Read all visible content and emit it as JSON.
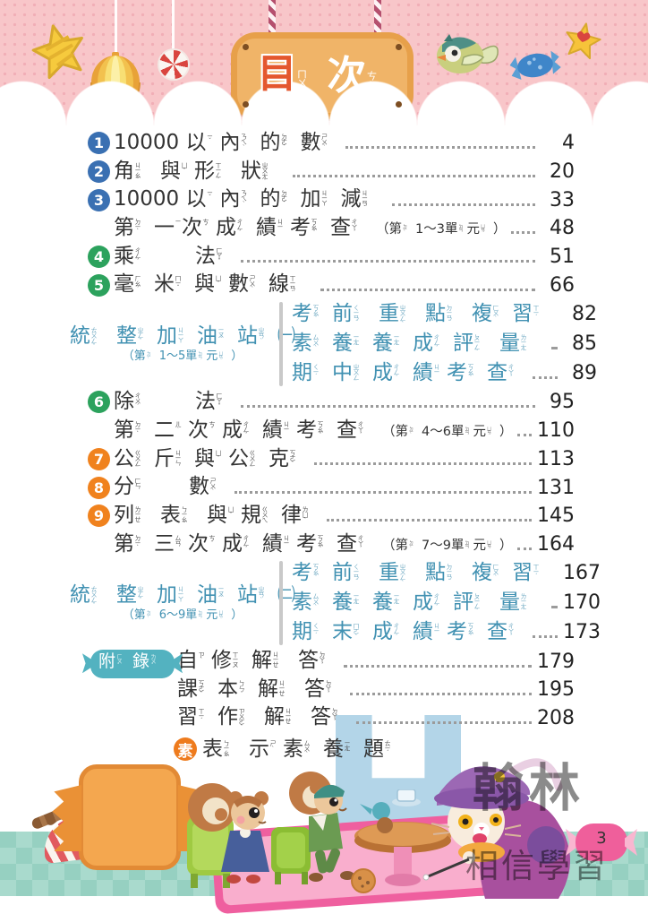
{
  "header": {
    "title_segs": [
      [
        "目",
        "ㄇㄨˋ"
      ],
      [
        "次",
        "ㄘˋ"
      ]
    ],
    "decorations": [
      "star-cookie",
      "paper-lantern",
      "peppermint-candy",
      "bird",
      "blue-candy",
      "heart-star"
    ]
  },
  "toc": {
    "rows": [
      {
        "type": "chapter",
        "num": "1",
        "color": "#3a70b2",
        "segs": [
          [
            "10000 "
          ],
          [
            "以",
            "ㄧˇ"
          ],
          [
            "內",
            "ㄋㄟˋ"
          ],
          [
            "的",
            "ㄉㄜ˙"
          ],
          [
            "數",
            "ㄕㄨˋ"
          ]
        ],
        "page": "4"
      },
      {
        "type": "chapter",
        "num": "2",
        "color": "#3a70b2",
        "segs": [
          [
            "角",
            "ㄐㄧㄠˇ"
          ],
          [
            "與",
            "ㄩˇ"
          ],
          [
            "形",
            "ㄒㄧㄥˊ"
          ],
          [
            "狀",
            "ㄓㄨㄤˋ"
          ]
        ],
        "page": "20"
      },
      {
        "type": "chapter",
        "num": "3",
        "color": "#3a70b2",
        "segs": [
          [
            "10000 "
          ],
          [
            "以",
            "ㄧˇ"
          ],
          [
            "內",
            "ㄋㄟˋ"
          ],
          [
            "的",
            "ㄉㄜ˙"
          ],
          [
            "加",
            "ㄐㄧㄚ"
          ],
          [
            "減",
            "ㄐㄧㄢˇ"
          ]
        ],
        "page": "33"
      },
      {
        "type": "exam",
        "segs": [
          [
            "第",
            "ㄉㄧˋ"
          ],
          [
            "一",
            "ㄧ"
          ],
          [
            "次",
            "ㄘˋ"
          ],
          [
            "成",
            "ㄔㄥˊ"
          ],
          [
            "績",
            "ㄐㄧ"
          ],
          [
            "考",
            "ㄎㄠˇ"
          ],
          [
            "查",
            "ㄔㄚˊ"
          ]
        ],
        "note_segs": [
          [
            "（"
          ],
          [
            "第",
            "ㄉㄧˋ"
          ],
          [
            "1～3"
          ],
          [
            "單",
            "ㄉㄢ"
          ],
          [
            "元",
            "ㄩㄢˊ"
          ],
          [
            "）"
          ]
        ],
        "page": "48"
      },
      {
        "type": "chapter",
        "num": "4",
        "color": "#2ca25d",
        "segs": [
          [
            "乘",
            "ㄔㄥˊ"
          ],
          [
            "　　"
          ],
          [
            "法",
            "ㄈㄚˇ"
          ]
        ],
        "page": "51"
      },
      {
        "type": "chapter",
        "num": "5",
        "color": "#2ca25d",
        "segs": [
          [
            "毫",
            "ㄏㄠˊ"
          ],
          [
            "米",
            "ㄇㄧˇ"
          ],
          [
            "與",
            "ㄩˇ"
          ],
          [
            "數",
            "ㄕㄨˋ"
          ],
          [
            "線",
            "ㄒㄧㄢˋ"
          ]
        ],
        "page": "66"
      },
      {
        "type": "station",
        "label_segs": [
          [
            "統",
            "ㄊㄨㄥˇ"
          ],
          [
            "整",
            "ㄓㄥˇ"
          ],
          [
            "加",
            "ㄐㄧㄚ"
          ],
          [
            "油",
            "ㄧㄡˊ"
          ],
          [
            "站",
            "ㄓㄢˋ"
          ],
          [
            "㈠"
          ]
        ],
        "note_segs": [
          [
            "（"
          ],
          [
            "第",
            "ㄉㄧˋ"
          ],
          [
            "1～5"
          ],
          [
            "單",
            "ㄉㄢ"
          ],
          [
            "元",
            "ㄩㄢˊ"
          ],
          [
            "）"
          ]
        ],
        "items": [
          {
            "segs": [
              [
                "考",
                "ㄎㄠˇ"
              ],
              [
                "前",
                "ㄑㄧㄢˊ"
              ],
              [
                "重",
                "ㄓㄨㄥˋ"
              ],
              [
                "點",
                "ㄉㄧㄢˇ"
              ],
              [
                "複",
                "ㄈㄨˋ"
              ],
              [
                "習",
                "ㄒㄧˊ"
              ]
            ],
            "page": "82"
          },
          {
            "segs": [
              [
                "素",
                "ㄙㄨˋ"
              ],
              [
                "養",
                "ㄧㄤˇ"
              ],
              [
                "養",
                "ㄧㄤˇ"
              ],
              [
                "成",
                "ㄔㄥˊ"
              ],
              [
                "評",
                "ㄆㄧㄥˊ"
              ],
              [
                "量",
                "ㄌㄧㄤˋ"
              ]
            ],
            "page": "85"
          },
          {
            "segs": [
              [
                "期",
                "ㄑㄧˊ"
              ],
              [
                "中",
                "ㄓㄨㄥ"
              ],
              [
                "成",
                "ㄔㄥˊ"
              ],
              [
                "績",
                "ㄐㄧ"
              ],
              [
                "考",
                "ㄎㄠˇ"
              ],
              [
                "查",
                "ㄔㄚˊ"
              ]
            ],
            "page": "89"
          }
        ]
      },
      {
        "type": "chapter",
        "num": "6",
        "color": "#2ca25d",
        "segs": [
          [
            "除",
            "ㄔㄨˊ"
          ],
          [
            "　　"
          ],
          [
            "法",
            "ㄈㄚˇ"
          ]
        ],
        "page": "95"
      },
      {
        "type": "exam",
        "segs": [
          [
            "第",
            "ㄉㄧˋ"
          ],
          [
            "二",
            "ㄦˋ"
          ],
          [
            "次",
            "ㄘˋ"
          ],
          [
            "成",
            "ㄔㄥˊ"
          ],
          [
            "績",
            "ㄐㄧ"
          ],
          [
            "考",
            "ㄎㄠˇ"
          ],
          [
            "查",
            "ㄔㄚˊ"
          ]
        ],
        "note_segs": [
          [
            "（"
          ],
          [
            "第",
            "ㄉㄧˋ"
          ],
          [
            "4～6"
          ],
          [
            "單",
            "ㄉㄢ"
          ],
          [
            "元",
            "ㄩㄢˊ"
          ],
          [
            "）"
          ]
        ],
        "page": "110"
      },
      {
        "type": "chapter",
        "num": "7",
        "color": "#f0821e",
        "segs": [
          [
            "公",
            "ㄍㄨㄥ"
          ],
          [
            "斤",
            "ㄐㄧㄣ"
          ],
          [
            "與",
            "ㄩˇ"
          ],
          [
            "公",
            "ㄍㄨㄥ"
          ],
          [
            "克",
            "ㄎㄜˋ"
          ]
        ],
        "page": "113"
      },
      {
        "type": "chapter",
        "num": "8",
        "color": "#f0821e",
        "segs": [
          [
            "分",
            "ㄈㄣ"
          ],
          [
            "　　"
          ],
          [
            "數",
            "ㄕㄨˋ"
          ]
        ],
        "page": "131"
      },
      {
        "type": "chapter",
        "num": "9",
        "color": "#f0821e",
        "segs": [
          [
            "列",
            "ㄌㄧㄝˋ"
          ],
          [
            "表",
            "ㄅㄧㄠˇ"
          ],
          [
            "與",
            "ㄩˇ"
          ],
          [
            "規",
            "ㄍㄨㄟ"
          ],
          [
            "律",
            "ㄌㄩˋ"
          ]
        ],
        "page": "145"
      },
      {
        "type": "exam",
        "segs": [
          [
            "第",
            "ㄉㄧˋ"
          ],
          [
            "三",
            "ㄙㄢ"
          ],
          [
            "次",
            "ㄘˋ"
          ],
          [
            "成",
            "ㄔㄥˊ"
          ],
          [
            "績",
            "ㄐㄧ"
          ],
          [
            "考",
            "ㄎㄠˇ"
          ],
          [
            "查",
            "ㄔㄚˊ"
          ]
        ],
        "note_segs": [
          [
            "（"
          ],
          [
            "第",
            "ㄉㄧˋ"
          ],
          [
            "7～9"
          ],
          [
            "單",
            "ㄉㄢ"
          ],
          [
            "元",
            "ㄩㄢˊ"
          ],
          [
            "）"
          ]
        ],
        "page": "164"
      },
      {
        "type": "station",
        "label_segs": [
          [
            "統",
            "ㄊㄨㄥˇ"
          ],
          [
            "整",
            "ㄓㄥˇ"
          ],
          [
            "加",
            "ㄐㄧㄚ"
          ],
          [
            "油",
            "ㄧㄡˊ"
          ],
          [
            "站",
            "ㄓㄢˋ"
          ],
          [
            "㈡"
          ]
        ],
        "note_segs": [
          [
            "（"
          ],
          [
            "第",
            "ㄉㄧˋ"
          ],
          [
            "6～9"
          ],
          [
            "單",
            "ㄉㄢ"
          ],
          [
            "元",
            "ㄩㄢˊ"
          ],
          [
            "）"
          ]
        ],
        "items": [
          {
            "segs": [
              [
                "考",
                "ㄎㄠˇ"
              ],
              [
                "前",
                "ㄑㄧㄢˊ"
              ],
              [
                "重",
                "ㄓㄨㄥˋ"
              ],
              [
                "點",
                "ㄉㄧㄢˇ"
              ],
              [
                "複",
                "ㄈㄨˋ"
              ],
              [
                "習",
                "ㄒㄧˊ"
              ]
            ],
            "page": "167"
          },
          {
            "segs": [
              [
                "素",
                "ㄙㄨˋ"
              ],
              [
                "養",
                "ㄧㄤˇ"
              ],
              [
                "養",
                "ㄧㄤˇ"
              ],
              [
                "成",
                "ㄔㄥˊ"
              ],
              [
                "評",
                "ㄆㄧㄥˊ"
              ],
              [
                "量",
                "ㄌㄧㄤˋ"
              ]
            ],
            "page": "170"
          },
          {
            "segs": [
              [
                "期",
                "ㄑㄧˊ"
              ],
              [
                "末",
                "ㄇㄛˋ"
              ],
              [
                "成",
                "ㄔㄥˊ"
              ],
              [
                "績",
                "ㄐㄧ"
              ],
              [
                "考",
                "ㄎㄠˇ"
              ],
              [
                "查",
                "ㄔㄚˊ"
              ]
            ],
            "page": "173"
          }
        ]
      },
      {
        "type": "appendix",
        "badge_segs": [
          [
            "附",
            "ㄈㄨˋ"
          ],
          [
            "錄",
            "ㄌㄨˋ"
          ]
        ],
        "items": [
          {
            "segs": [
              [
                "自",
                "ㄗˋ"
              ],
              [
                "修",
                "ㄒㄧㄡ"
              ],
              [
                "解",
                "ㄐㄧㄝˇ"
              ],
              [
                "答",
                "ㄉㄚˊ"
              ]
            ],
            "page": "179"
          },
          {
            "segs": [
              [
                "課",
                "ㄎㄜˋ"
              ],
              [
                "本",
                "ㄅㄣˇ"
              ],
              [
                "解",
                "ㄐㄧㄝˇ"
              ],
              [
                "答",
                "ㄉㄚˊ"
              ]
            ],
            "page": "195"
          },
          {
            "segs": [
              [
                "習",
                "ㄒㄧˊ"
              ],
              [
                "作",
                "ㄗㄨㄛˋ"
              ],
              [
                "解",
                "ㄐㄧㄝˇ"
              ],
              [
                "答",
                "ㄉㄚˊ"
              ]
            ],
            "page": "208"
          }
        ]
      },
      {
        "type": "legend",
        "badge": "素",
        "segs": [
          [
            "表",
            "ㄅㄧㄠˇ"
          ],
          [
            "示",
            "ㄕˋ"
          ],
          [
            "素",
            "ㄙㄨˋ"
          ],
          [
            "養",
            "ㄧㄤˇ"
          ],
          [
            "題",
            "ㄊㄧˊ"
          ]
        ]
      }
    ]
  },
  "footer": {
    "brand": "翰林",
    "slogan": "相信學習",
    "page_number": "3",
    "watermark_letter": "H"
  },
  "colors": {
    "chapter_blue": "#3a70b2",
    "chapter_green": "#2ca25d",
    "chapter_orange": "#f0821e",
    "station_teal": "#4191b2",
    "appendix_badge": "#53b2c0",
    "legend_badge": "#ee7b1d",
    "header_pink": "#f8c6c9",
    "sign_cookie": "#e7a04a"
  }
}
